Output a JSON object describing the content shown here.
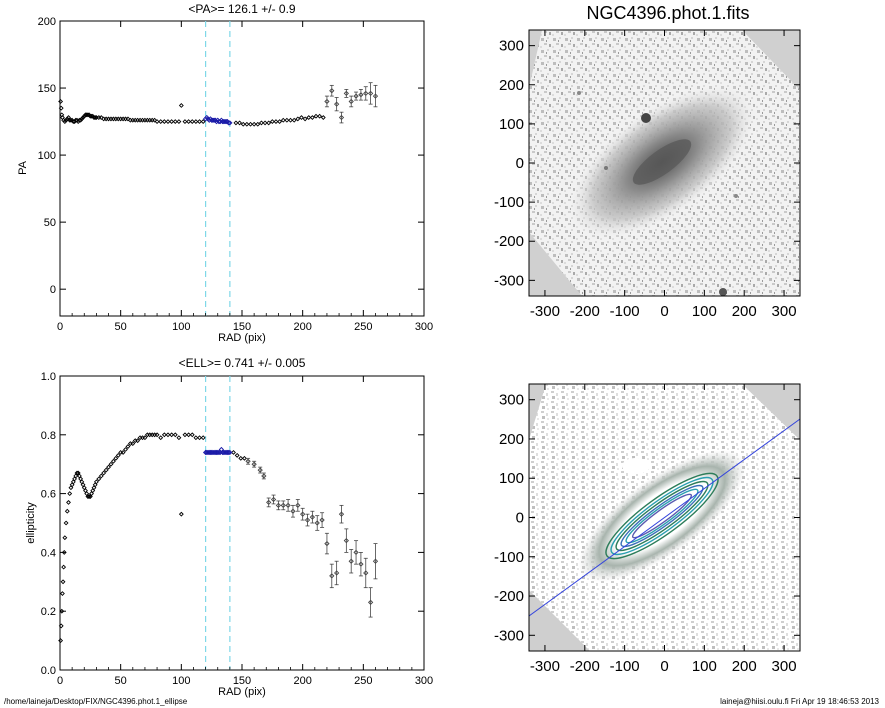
{
  "chart_data": [
    {
      "type": "scatter",
      "title": "<PA>= 126.1 +/-   0.9",
      "xlabel": "RAD (pix)",
      "ylabel": "PA",
      "xlim": [
        0,
        300
      ],
      "ylim": [
        -20,
        200
      ],
      "xticks": [
        "0",
        "50",
        "100",
        "150",
        "200",
        "250",
        "300"
      ],
      "yticks": [
        "0",
        "50",
        "100",
        "150",
        "200"
      ],
      "ytick_values": [
        0,
        50,
        100,
        150,
        200
      ],
      "vlines": [
        120,
        140
      ],
      "series": [
        {
          "style": "black-diamonds",
          "x": [
            0.5,
            1,
            1.5,
            2,
            3,
            4,
            5,
            6,
            7,
            8,
            9,
            10,
            11,
            12,
            13,
            14,
            15,
            16,
            17,
            18,
            19,
            20,
            21,
            22,
            23,
            24,
            25,
            26,
            27,
            28,
            29,
            30,
            32,
            34,
            36,
            38,
            40,
            42,
            44,
            46,
            48,
            50,
            52,
            54,
            56,
            58,
            60,
            62,
            64,
            66,
            68,
            70,
            72,
            74,
            76,
            78,
            80,
            83,
            86,
            89,
            92,
            95,
            98,
            100,
            103,
            106,
            109,
            112,
            115,
            118,
            145,
            148,
            151,
            154,
            157,
            160,
            163,
            166,
            169,
            172,
            175,
            178,
            181,
            184,
            187,
            190,
            193,
            196,
            199,
            202,
            205,
            208,
            211,
            214,
            217
          ],
          "y": [
            140,
            135,
            130,
            128,
            126,
            125,
            126,
            127,
            128,
            126,
            126,
            126,
            125,
            125,
            126,
            126,
            125,
            126,
            126,
            127,
            128,
            129,
            130,
            130,
            130,
            130,
            129,
            129,
            129,
            128,
            128,
            128,
            128,
            128,
            127,
            127,
            127,
            127,
            127,
            127,
            127,
            127,
            127,
            127,
            127,
            126,
            126,
            126,
            126,
            126,
            126,
            126,
            126,
            126,
            126,
            126,
            125,
            125,
            125,
            125,
            125,
            125,
            125,
            137,
            125,
            125,
            125,
            125,
            125,
            125,
            124,
            124,
            123,
            123,
            123,
            123,
            123,
            124,
            124,
            124,
            125,
            125,
            125,
            126,
            126,
            126,
            126,
            127,
            128,
            127,
            128,
            128,
            129,
            129,
            128
          ]
        },
        {
          "style": "blue-diamonds",
          "x": [
            120,
            121,
            122,
            123,
            124,
            125,
            126,
            127,
            128,
            129,
            130,
            131,
            132,
            133,
            134,
            135,
            136,
            137,
            138,
            139,
            140
          ],
          "y": [
            127,
            128,
            127,
            126,
            127,
            126,
            126,
            126,
            126,
            125,
            126,
            125,
            125,
            126,
            125,
            125,
            125,
            125,
            125,
            124,
            124
          ]
        },
        {
          "style": "error-bars",
          "x": [
            220,
            224,
            228,
            232,
            236,
            240,
            244,
            248,
            252,
            256,
            260
          ],
          "y": [
            140,
            148,
            138,
            128,
            146,
            140,
            144,
            145,
            146,
            146,
            144
          ],
          "err": [
            4,
            4,
            5,
            4,
            3,
            4,
            3,
            4,
            5,
            8,
            8
          ]
        }
      ]
    },
    {
      "type": "scatter",
      "title": "<ELL>= 0.741 +/-  0.005",
      "xlabel": "RAD (pix)",
      "ylabel": "ellipticity",
      "xlim": [
        0,
        300
      ],
      "ylim": [
        0.0,
        1.0
      ],
      "xticks": [
        "0",
        "50",
        "100",
        "150",
        "200",
        "250",
        "300"
      ],
      "yticks": [
        "0.0",
        "0.2",
        "0.4",
        "0.6",
        "0.8",
        "1.0"
      ],
      "ytick_values": [
        0.0,
        0.2,
        0.4,
        0.6,
        0.8,
        1.0
      ],
      "vlines": [
        120,
        140
      ],
      "series": [
        {
          "style": "black-diamonds",
          "x": [
            0.5,
            1,
            1.5,
            2,
            2.5,
            3,
            3.5,
            4,
            5,
            6,
            7,
            8,
            9,
            10,
            11,
            12,
            13,
            14,
            15,
            16,
            17,
            18,
            19,
            20,
            21,
            22,
            23,
            24,
            25,
            26,
            27,
            28,
            29,
            30,
            32,
            34,
            36,
            38,
            40,
            42,
            44,
            46,
            48,
            50,
            52,
            54,
            56,
            58,
            60,
            62,
            64,
            66,
            68,
            70,
            72,
            74,
            76,
            78,
            80,
            83,
            86,
            89,
            92,
            95,
            98,
            100,
            103,
            106,
            109,
            112,
            115,
            118,
            143,
            146,
            149,
            152
          ],
          "y": [
            0.1,
            0.15,
            0.2,
            0.26,
            0.3,
            0.35,
            0.4,
            0.45,
            0.5,
            0.54,
            0.57,
            0.6,
            0.62,
            0.63,
            0.64,
            0.65,
            0.66,
            0.67,
            0.67,
            0.66,
            0.65,
            0.64,
            0.63,
            0.62,
            0.61,
            0.6,
            0.59,
            0.59,
            0.59,
            0.6,
            0.61,
            0.62,
            0.63,
            0.64,
            0.65,
            0.66,
            0.67,
            0.68,
            0.69,
            0.7,
            0.71,
            0.72,
            0.73,
            0.74,
            0.74,
            0.75,
            0.76,
            0.77,
            0.77,
            0.78,
            0.78,
            0.79,
            0.79,
            0.79,
            0.8,
            0.8,
            0.8,
            0.8,
            0.8,
            0.79,
            0.8,
            0.8,
            0.8,
            0.8,
            0.79,
            0.53,
            0.8,
            0.8,
            0.8,
            0.79,
            0.79,
            0.79,
            0.74,
            0.73,
            0.72,
            0.72
          ]
        },
        {
          "style": "blue-diamonds",
          "x": [
            120,
            121,
            122,
            123,
            124,
            125,
            126,
            127,
            128,
            129,
            130,
            131,
            132,
            133,
            134,
            135,
            136,
            137,
            138,
            139,
            140
          ],
          "y": [
            0.74,
            0.74,
            0.74,
            0.74,
            0.74,
            0.74,
            0.74,
            0.74,
            0.74,
            0.74,
            0.74,
            0.74,
            0.74,
            0.75,
            0.74,
            0.74,
            0.74,
            0.74,
            0.74,
            0.74,
            0.74
          ]
        },
        {
          "style": "error-bars",
          "x": [
            155,
            160,
            165,
            168,
            172,
            176,
            180,
            184,
            188,
            192,
            196,
            200,
            204,
            208,
            212,
            216,
            220,
            224,
            228,
            232,
            236,
            240,
            244,
            248,
            252,
            256,
            260
          ],
          "y": [
            0.71,
            0.7,
            0.68,
            0.66,
            0.57,
            0.58,
            0.56,
            0.56,
            0.56,
            0.54,
            0.56,
            0.53,
            0.51,
            0.52,
            0.5,
            0.51,
            0.43,
            0.32,
            0.33,
            0.53,
            0.44,
            0.37,
            0.4,
            0.36,
            0.33,
            0.23,
            0.37
          ],
          "err": [
            0.01,
            0.01,
            0.01,
            0.01,
            0.015,
            0.015,
            0.015,
            0.015,
            0.02,
            0.02,
            0.02,
            0.02,
            0.02,
            0.02,
            0.025,
            0.025,
            0.035,
            0.04,
            0.04,
            0.03,
            0.04,
            0.04,
            0.04,
            0.04,
            0.05,
            0.05,
            0.06
          ]
        }
      ]
    }
  ],
  "images": [
    {
      "title": "NGC4396.phot.1.fits",
      "xlim": [
        -340,
        340
      ],
      "ylim": [
        -340,
        340
      ],
      "xticks": [
        "-300",
        "-200",
        "-100",
        "0",
        "100",
        "200",
        "300"
      ],
      "yticks": [
        "300",
        "200",
        "100",
        "0",
        "-100",
        "-200",
        "-300"
      ],
      "tick_values": [
        -300,
        -200,
        -100,
        0,
        100,
        200,
        300
      ]
    },
    {
      "title": "",
      "xlim": [
        -340,
        340
      ],
      "ylim": [
        -340,
        340
      ],
      "xticks": [
        "-300",
        "-200",
        "-100",
        "0",
        "100",
        "200",
        "300"
      ],
      "yticks": [
        "300",
        "200",
        "100",
        "0",
        "-100",
        "-200",
        "-300"
      ],
      "tick_values": [
        -300,
        -200,
        -100,
        0,
        100,
        200,
        300
      ]
    }
  ],
  "footer": {
    "path": "/home/laineja/Desktop/FIX/NGC4396.phot.1_ellipse",
    "stamp": "laineja@hiisi.oulu.fi  Fri Apr 19 18:46:53 2013"
  },
  "colors": {
    "axis": "#000000",
    "vline": "#7fd8e8",
    "blue_points": "#1a1aa8",
    "error_points": "#444444",
    "image_bg": "#d0d0d0",
    "galaxy_core": "#555555",
    "blue_line": "#3344dd",
    "contour_green": "#2e7d5a",
    "contour_teal": "#2a9fb0"
  }
}
